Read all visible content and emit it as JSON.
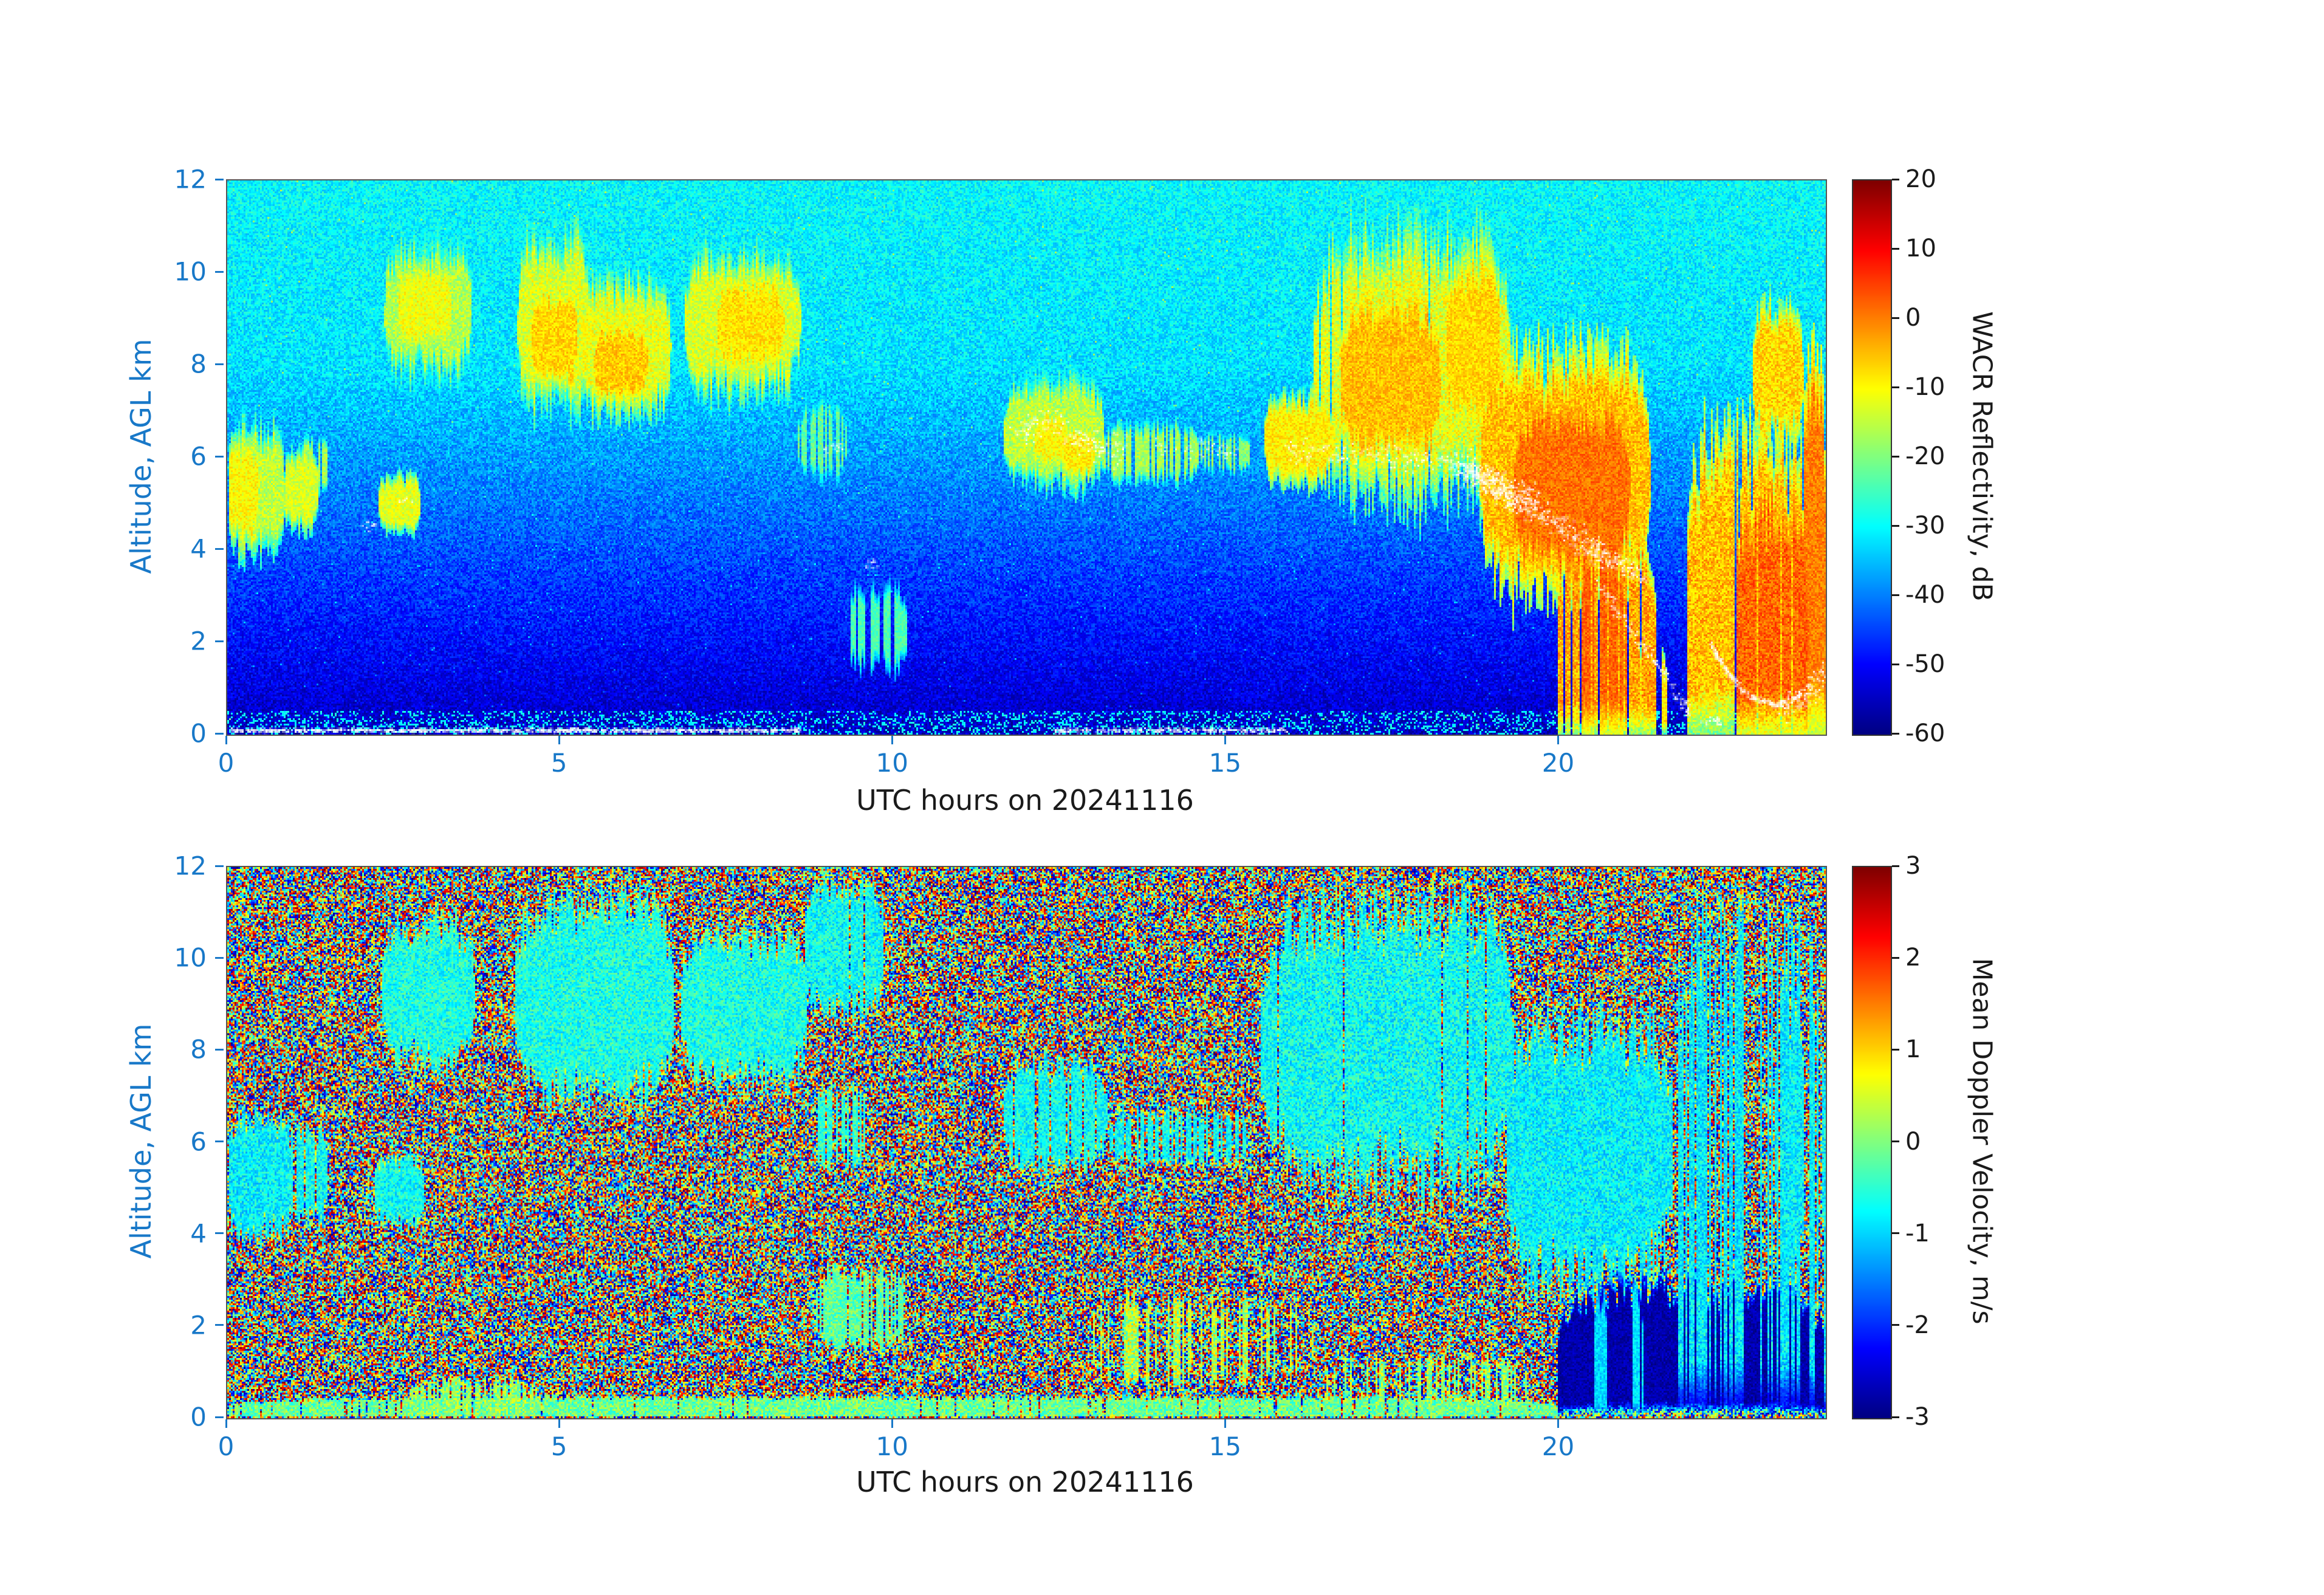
{
  "figure": {
    "description": "Two-panel radar time-height quicklook for 2024-11-16",
    "background": "#ffffff"
  },
  "style": {
    "axis_color": "#1878c8",
    "text_color": "#1a1a1a",
    "marker_color": "#ffffff",
    "jet": [
      [
        0,
        0,
        0,
        131
      ],
      [
        0.125,
        0,
        0,
        255
      ],
      [
        0.375,
        0,
        255,
        255
      ],
      [
        0.625,
        255,
        255,
        0
      ],
      [
        0.875,
        255,
        0,
        0
      ],
      [
        1,
        128,
        0,
        0
      ]
    ]
  },
  "chart_data": [
    {
      "type": "heatmap",
      "id": "reflectivity",
      "title": "",
      "xlabel": "UTC hours on 20241116",
      "ylabel": "Altitude, AGL km",
      "xlim": [
        0,
        24
      ],
      "ylim": [
        0,
        12
      ],
      "xticks": [
        0,
        5,
        10,
        15,
        20
      ],
      "yticks": [
        0,
        2,
        4,
        6,
        8,
        10,
        12
      ],
      "colorbar": {
        "label": "WACR Reflectivity, dB",
        "min": -60,
        "max": 20,
        "ticks": [
          20,
          10,
          0,
          -10,
          -20,
          -30,
          -40,
          -50,
          -60
        ]
      },
      "colormap": "jet",
      "noise": "gradient",
      "seed": 7,
      "features": [
        {
          "t": [
            0.0,
            0.85
          ],
          "z": [
            3.9,
            6.7
          ],
          "v": -15,
          "n": 5
        },
        {
          "t": [
            0.0,
            0.45
          ],
          "z": [
            4.2,
            6.3
          ],
          "v": -10,
          "n": 4
        },
        {
          "t": [
            0.85,
            1.35
          ],
          "z": [
            4.4,
            6.2
          ],
          "v": -13,
          "n": 4
        },
        {
          "t": [
            1.1,
            1.5
          ],
          "z": [
            5.3,
            6.4
          ],
          "v": -17,
          "n": 4,
          "p": 0.8
        },
        {
          "t": [
            2.25,
            2.9
          ],
          "z": [
            4.4,
            5.6
          ],
          "v": -12,
          "n": 4
        },
        {
          "t": [
            2.35,
            3.65
          ],
          "z": [
            7.8,
            10.6
          ],
          "v": -16,
          "n": 5
        },
        {
          "t": [
            2.55,
            3.35
          ],
          "z": [
            8.4,
            10.2
          ],
          "v": -11,
          "n": 4
        },
        {
          "t": [
            4.35,
            5.45
          ],
          "z": [
            7.1,
            10.8
          ],
          "v": -13,
          "n": 5
        },
        {
          "t": [
            4.55,
            5.25
          ],
          "z": [
            7.5,
            9.7
          ],
          "v": -7,
          "n": 4
        },
        {
          "t": [
            5.3,
            6.65
          ],
          "z": [
            6.9,
            9.9
          ],
          "v": -12,
          "n": 5
        },
        {
          "t": [
            5.5,
            6.3
          ],
          "z": [
            7.2,
            8.9
          ],
          "v": -6,
          "n": 4
        },
        {
          "t": [
            6.85,
            8.6
          ],
          "z": [
            7.4,
            10.4
          ],
          "v": -13,
          "n": 5
        },
        {
          "t": [
            7.35,
            8.35
          ],
          "z": [
            7.9,
            9.9
          ],
          "v": -8,
          "n": 4
        },
        {
          "t": [
            8.55,
            9.3
          ],
          "z": [
            5.6,
            7.2
          ],
          "v": -22,
          "n": 4,
          "p": 0.6
        },
        {
          "t": [
            9.3,
            10.2
          ],
          "z": [
            1.4,
            3.2
          ],
          "v": -24,
          "n": 3,
          "p": 0.75
        },
        {
          "t": [
            11.65,
            13.15
          ],
          "z": [
            5.4,
            7.7
          ],
          "v": -15,
          "n": 5
        },
        {
          "t": [
            12.1,
            12.6
          ],
          "z": [
            5.8,
            7.0
          ],
          "v": -10,
          "n": 4
        },
        {
          "t": [
            12.55,
            13.0
          ],
          "z": [
            5.6,
            6.6
          ],
          "v": -9,
          "n": 4
        },
        {
          "t": [
            13.1,
            14.6
          ],
          "z": [
            5.5,
            6.7
          ],
          "v": -17,
          "n": 4,
          "p": 0.85
        },
        {
          "t": [
            14.6,
            15.35
          ],
          "z": [
            5.7,
            6.5
          ],
          "v": -19,
          "n": 4,
          "p": 0.7
        },
        {
          "t": [
            15.55,
            16.6
          ],
          "z": [
            5.4,
            7.3
          ],
          "v": -9,
          "n": 4
        },
        {
          "t": [
            16.3,
            19.25
          ],
          "z": [
            5.1,
            10.9
          ],
          "v": -12,
          "n": 6,
          "p": 0.95
        },
        {
          "t": [
            16.7,
            18.2
          ],
          "z": [
            5.8,
            9.6
          ],
          "v": -5,
          "n": 4
        },
        {
          "t": [
            18.3,
            19.1
          ],
          "z": [
            6.5,
            10.4
          ],
          "v": -7,
          "n": 4
        },
        {
          "t": [
            18.8,
            21.35
          ],
          "z": [
            3.1,
            8.3
          ],
          "v": -5,
          "n": 5
        },
        {
          "t": [
            19.3,
            21.05
          ],
          "z": [
            3.4,
            7.2
          ],
          "v": 1,
          "n": 4
        },
        {
          "t": [
            19.95,
            21.45
          ],
          "z": [
            0.0,
            4.2
          ],
          "v": -3,
          "n": 6,
          "p": 0.85,
          "pin": true
        },
        {
          "t": [
            20.3,
            21.0
          ],
          "z": [
            0.0,
            4.5
          ],
          "v": 2,
          "n": 4,
          "p": 0.7,
          "pin": true
        },
        {
          "t": [
            21.1,
            21.6
          ],
          "z": [
            0.0,
            2.0
          ],
          "v": -8,
          "n": 5,
          "p": 0.6,
          "pin": true
        },
        {
          "t": [
            21.9,
            23.98
          ],
          "z": [
            0.0,
            6.6
          ],
          "v": -5,
          "n": 6,
          "p": 0.85,
          "pin": true
        },
        {
          "t": [
            22.6,
            23.7
          ],
          "z": [
            0.0,
            5.2
          ],
          "v": 2,
          "n": 5,
          "p": 0.8,
          "pin": true
        },
        {
          "t": [
            22.9,
            23.65
          ],
          "z": [
            6.4,
            9.3
          ],
          "v": -7,
          "n": 5
        },
        {
          "t": [
            23.65,
            23.98
          ],
          "z": [
            0.0,
            8.2
          ],
          "v": 0,
          "n": 4,
          "pin": true
        }
      ],
      "markers": [
        {
          "pts": [
            [
              15.85,
              6.15
            ],
            [
              17.2,
              6.05
            ],
            [
              18.2,
              5.95
            ],
            [
              18.9,
              5.55
            ],
            [
              19.6,
              4.95
            ],
            [
              20.15,
              4.35
            ],
            [
              20.7,
              3.85
            ],
            [
              21.25,
              3.35
            ]
          ],
          "n": 500,
          "jt": 0.12,
          "jz": 0.28,
          "s": 1
        },
        {
          "pts": [
            [
              18.5,
              5.8
            ],
            [
              19.1,
              5.3
            ],
            [
              19.6,
              5.0
            ]
          ],
          "n": 260,
          "jt": 0.15,
          "jz": 0.35,
          "s": 1
        },
        {
          "pts": [
            [
              11.85,
              6.5
            ],
            [
              12.35,
              6.8
            ],
            [
              12.9,
              6.3
            ],
            [
              13.55,
              6.1
            ]
          ],
          "n": 140,
          "jt": 0.12,
          "jz": 0.3,
          "s": 1
        },
        {
          "pts": [
            [
              13.9,
              6.15
            ],
            [
              14.6,
              6.2
            ],
            [
              15.1,
              6.1
            ]
          ],
          "n": 40,
          "jt": 0.1,
          "jz": 0.2,
          "s": 1
        },
        {
          "pts": [
            [
              8.95,
              6.1
            ],
            [
              9.25,
              6.35
            ]
          ],
          "n": 14,
          "jt": 0.08,
          "jz": 0.15,
          "s": 1
        },
        {
          "pts": [
            [
              2.0,
              4.5
            ],
            [
              2.25,
              4.6
            ]
          ],
          "n": 10,
          "jt": 0.06,
          "jz": 0.12,
          "s": 1
        },
        {
          "pts": [
            [
              2.6,
              5.05
            ],
            [
              2.75,
              5.1
            ]
          ],
          "n": 6,
          "jt": 0.05,
          "jz": 0.1,
          "s": 1
        },
        {
          "pts": [
            [
              9.55,
              3.6
            ],
            [
              9.75,
              3.75
            ]
          ],
          "n": 9,
          "jt": 0.05,
          "jz": 0.12,
          "s": 1
        },
        {
          "pts": [
            [
              20.55,
              3.3
            ],
            [
              20.9,
              2.6
            ],
            [
              21.3,
              1.8
            ],
            [
              21.7,
              1.0
            ],
            [
              21.95,
              0.4
            ]
          ],
          "n": 110,
          "jt": 0.07,
          "jz": 0.12,
          "s": 1
        },
        {
          "pts": [
            [
              22.25,
              1.95
            ],
            [
              22.5,
              1.35
            ],
            [
              22.85,
              0.8
            ],
            [
              23.25,
              0.6
            ],
            [
              23.6,
              0.85
            ]
          ],
          "n": 170,
          "jt": 0.03,
          "jz": 0.06,
          "s": 1
        },
        {
          "pts": [
            [
              0.05,
              0.07
            ],
            [
              8.6,
              0.07
            ]
          ],
          "n": 700,
          "jt": 0.02,
          "jz": 0.04,
          "s": 1
        },
        {
          "pts": [
            [
              12.4,
              0.07
            ],
            [
              15.9,
              0.07
            ]
          ],
          "n": 220,
          "jt": 0.02,
          "jz": 0.05,
          "s": 1
        },
        {
          "pts": [
            [
              23.3,
              0.4
            ],
            [
              23.7,
              0.9
            ],
            [
              23.95,
              1.3
            ]
          ],
          "n": 80,
          "jt": 0.1,
          "jz": 0.3,
          "s": 1
        },
        {
          "pts": [
            [
              22.15,
              0.3
            ],
            [
              22.45,
              0.25
            ]
          ],
          "n": 20,
          "jt": 0.06,
          "jz": 0.1,
          "s": 1
        }
      ]
    },
    {
      "type": "heatmap",
      "id": "velocity",
      "title": "",
      "xlabel": "UTC hours on 20241116",
      "ylabel": "Altitude, AGL km",
      "xlim": [
        0,
        24
      ],
      "ylim": [
        0,
        12
      ],
      "xticks": [
        0,
        5,
        10,
        15,
        20
      ],
      "yticks": [
        0,
        2,
        4,
        6,
        8,
        10,
        12
      ],
      "colorbar": {
        "label": "Mean Doppler Velocity, m/s",
        "min": -3,
        "max": 3,
        "ticks": [
          3,
          2,
          1,
          0,
          -1,
          -2,
          -3
        ]
      },
      "colormap": "jet",
      "noise": "uniform",
      "seed": 13,
      "features": [
        {
          "t": [
            0.0,
            0.95
          ],
          "z": [
            3.8,
            6.7
          ],
          "v": -0.8,
          "n": 0.5
        },
        {
          "t": [
            0.9,
            1.5
          ],
          "z": [
            4.3,
            6.3
          ],
          "v": -0.7,
          "n": 0.5,
          "p": 0.8
        },
        {
          "t": [
            2.2,
            2.95
          ],
          "z": [
            4.2,
            5.7
          ],
          "v": -0.7,
          "n": 0.5
        },
        {
          "t": [
            2.3,
            3.7
          ],
          "z": [
            7.7,
            10.8
          ],
          "v": -0.6,
          "n": 0.5
        },
        {
          "t": [
            4.3,
            6.7
          ],
          "z": [
            7.0,
            11.3
          ],
          "v": -0.6,
          "n": 0.5
        },
        {
          "t": [
            6.8,
            8.7
          ],
          "z": [
            7.3,
            10.6
          ],
          "v": -0.6,
          "n": 0.5
        },
        {
          "t": [
            8.65,
            9.85
          ],
          "z": [
            8.8,
            11.7
          ],
          "v": -0.7,
          "n": 0.5,
          "p": 0.85
        },
        {
          "t": [
            8.75,
            9.6
          ],
          "z": [
            5.5,
            7.1
          ],
          "v": -0.5,
          "n": 0.5,
          "p": 0.55
        },
        {
          "t": [
            8.8,
            10.2
          ],
          "z": [
            1.5,
            3.2
          ],
          "v": -0.2,
          "n": 0.5,
          "p": 0.8
        },
        {
          "t": [
            11.65,
            13.2
          ],
          "z": [
            5.4,
            7.8
          ],
          "v": -0.7,
          "n": 0.5,
          "p": 0.85
        },
        {
          "t": [
            13.2,
            15.35
          ],
          "z": [
            5.5,
            6.7
          ],
          "v": -0.7,
          "n": 0.5,
          "p": 0.6
        },
        {
          "t": [
            15.5,
            19.3
          ],
          "z": [
            5.0,
            11.3
          ],
          "v": -0.7,
          "n": 0.55,
          "p": 0.92
        },
        {
          "t": [
            19.2,
            21.7
          ],
          "z": [
            2.8,
            8.7
          ],
          "v": -0.8,
          "n": 0.5
        },
        {
          "t": [
            19.95,
            23.98
          ],
          "z": [
            0.0,
            2.9
          ],
          "v": -2.75,
          "n": 0.25,
          "pin": true
        },
        {
          "t": [
            20.5,
            20.7
          ],
          "z": [
            0.0,
            2.6
          ],
          "v": -1.0,
          "n": 0.3,
          "p": 0.8,
          "pin": true
        },
        {
          "t": [
            21.05,
            21.25
          ],
          "z": [
            0.0,
            2.8
          ],
          "v": -0.9,
          "n": 0.3,
          "p": 0.8,
          "pin": true
        },
        {
          "t": [
            21.7,
            23.98
          ],
          "z": [
            0.0,
            11.0
          ],
          "v": -0.85,
          "n": 0.5,
          "p": 0.5,
          "pin": true
        },
        {
          "t": [
            23.2,
            23.98
          ],
          "z": [
            3.0,
            9.0
          ],
          "v": -0.8,
          "n": 0.5,
          "p": 0.6
        },
        {
          "t": [
            0.0,
            19.95
          ],
          "z": [
            0.0,
            0.45
          ],
          "v": -0.1,
          "n": 0.55,
          "p": 0.9,
          "pin": true
        },
        {
          "t": [
            2.7,
            4.7
          ],
          "z": [
            0.0,
            0.85
          ],
          "v": 0.1,
          "n": 0.6,
          "p": 0.7,
          "pin": true
        },
        {
          "t": [
            12.9,
            16.3
          ],
          "z": [
            0.7,
            2.6
          ],
          "v": 0.3,
          "n": 0.8,
          "p": 0.3
        },
        {
          "t": [
            16.4,
            19.6
          ],
          "z": [
            0.2,
            1.3
          ],
          "v": 0.1,
          "n": 0.7,
          "p": 0.35
        }
      ],
      "markers": []
    }
  ]
}
